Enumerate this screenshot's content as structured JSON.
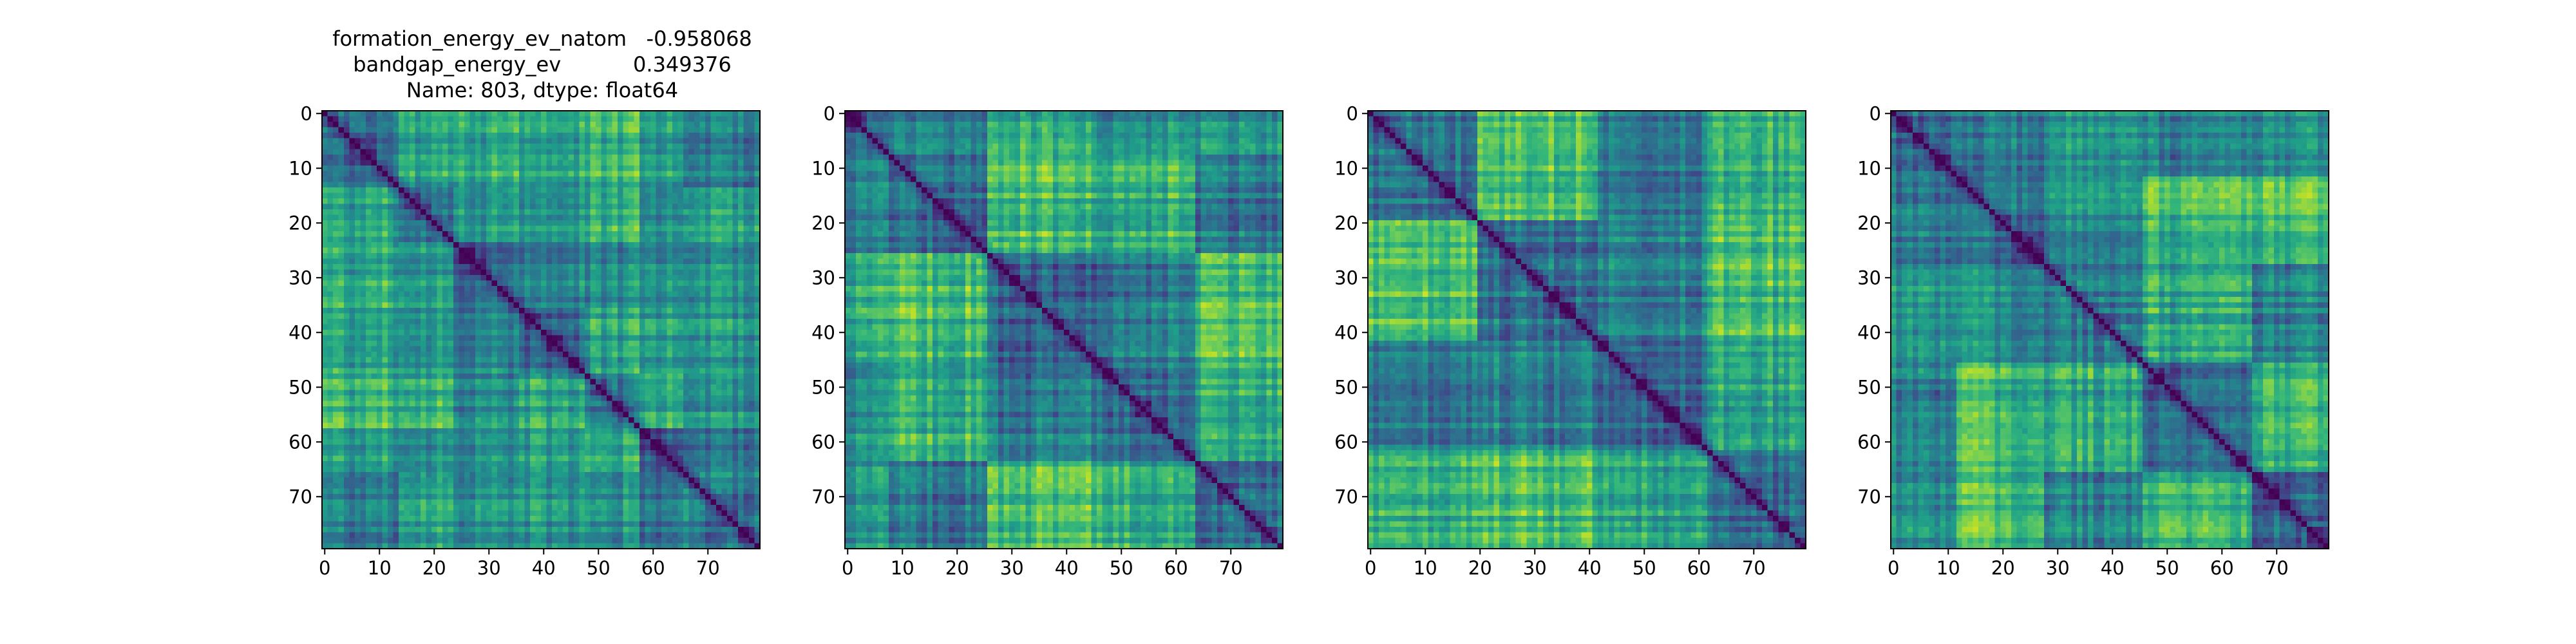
{
  "figure": {
    "title_lines": [
      "formation_energy_ev_natom   -0.958068",
      "bandgap_energy_ev           0.349376",
      "Name: 803, dtype: float64"
    ]
  },
  "chart_data": [
    {
      "type": "heatmap",
      "title": "formation_energy_ev_natom   -0.958068\nbandgap_energy_ev           0.349376\nName: 803, dtype: float64",
      "size": 80,
      "colormap": "viridis",
      "seed": 11,
      "blocks": [
        0,
        14,
        24,
        36,
        48,
        58,
        66,
        80
      ],
      "xticks": [
        0,
        10,
        20,
        30,
        40,
        50,
        60,
        70
      ],
      "yticks": [
        0,
        10,
        20,
        30,
        40,
        50,
        60,
        70
      ],
      "xlim": [
        -0.5,
        79.5
      ],
      "ylim": [
        79.5,
        -0.5
      ],
      "xlabel": "",
      "ylabel": ""
    },
    {
      "type": "heatmap",
      "title": "",
      "size": 80,
      "colormap": "viridis",
      "seed": 23,
      "blocks": [
        0,
        8,
        26,
        46,
        64,
        80
      ],
      "xticks": [
        0,
        10,
        20,
        30,
        40,
        50,
        60,
        70
      ],
      "yticks": [
        0,
        10,
        20,
        30,
        40,
        50,
        60,
        70
      ],
      "xlim": [
        -0.5,
        79.5
      ],
      "ylim": [
        79.5,
        -0.5
      ],
      "xlabel": "",
      "ylabel": ""
    },
    {
      "type": "heatmap",
      "title": "",
      "size": 80,
      "colormap": "viridis",
      "seed": 37,
      "blocks": [
        0,
        20,
        42,
        62,
        80
      ],
      "xticks": [
        0,
        10,
        20,
        30,
        40,
        50,
        60,
        70
      ],
      "yticks": [
        0,
        10,
        20,
        30,
        40,
        50,
        60,
        70
      ],
      "xlim": [
        -0.5,
        79.5
      ],
      "ylim": [
        79.5,
        -0.5
      ],
      "xlabel": "",
      "ylabel": ""
    },
    {
      "type": "heatmap",
      "title": "",
      "size": 80,
      "colormap": "viridis",
      "seed": 51,
      "blocks": [
        0,
        12,
        28,
        46,
        66,
        80
      ],
      "xticks": [
        0,
        10,
        20,
        30,
        40,
        50,
        60,
        70
      ],
      "yticks": [
        0,
        10,
        20,
        30,
        40,
        50,
        60,
        70
      ],
      "xlim": [
        -0.5,
        79.5
      ],
      "ylim": [
        79.5,
        -0.5
      ],
      "xlabel": "",
      "ylabel": ""
    }
  ]
}
